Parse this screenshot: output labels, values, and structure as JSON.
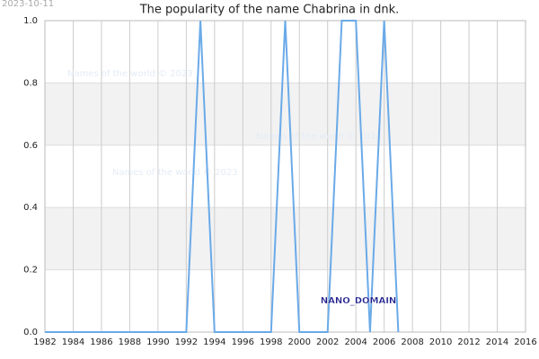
{
  "chart_data": {
    "type": "line",
    "title": "The popularity of the name Chabrina in dnk.",
    "date_stamp": "2023-10-11",
    "watermarks": [
      "Names of the world © 2023",
      "Names of the world © 2023",
      "Names of the world © 2023"
    ],
    "annotation": "NANO_DOMAIN",
    "x": [
      1982,
      1983,
      1984,
      1985,
      1986,
      1987,
      1988,
      1989,
      1990,
      1991,
      1992,
      1993,
      1994,
      1995,
      1996,
      1997,
      1998,
      1999,
      2000,
      2001,
      2002,
      2003,
      2004,
      2005,
      2006,
      2007
    ],
    "series": [
      {
        "name": "Chabrina",
        "color": "#6aaae8",
        "values": [
          0,
          0,
          0,
          0,
          0,
          0,
          0,
          0,
          0,
          0,
          0,
          1,
          0,
          0,
          0,
          0,
          0,
          1,
          0,
          0,
          0,
          1,
          1,
          0,
          1,
          0
        ]
      }
    ],
    "xlim": [
      1982,
      2016
    ],
    "xticks": [
      1982,
      1984,
      1986,
      1988,
      1990,
      1992,
      1994,
      1996,
      1998,
      2000,
      2002,
      2004,
      2006,
      2008,
      2010,
      2012,
      2014,
      2016
    ],
    "ylim": [
      0,
      1
    ],
    "yticks": [
      {
        "value": 0,
        "label": "0.0"
      },
      0.2,
      0.4,
      0.6,
      0.8,
      {
        "value": 1,
        "label": "1.0"
      }
    ],
    "grid": true
  }
}
